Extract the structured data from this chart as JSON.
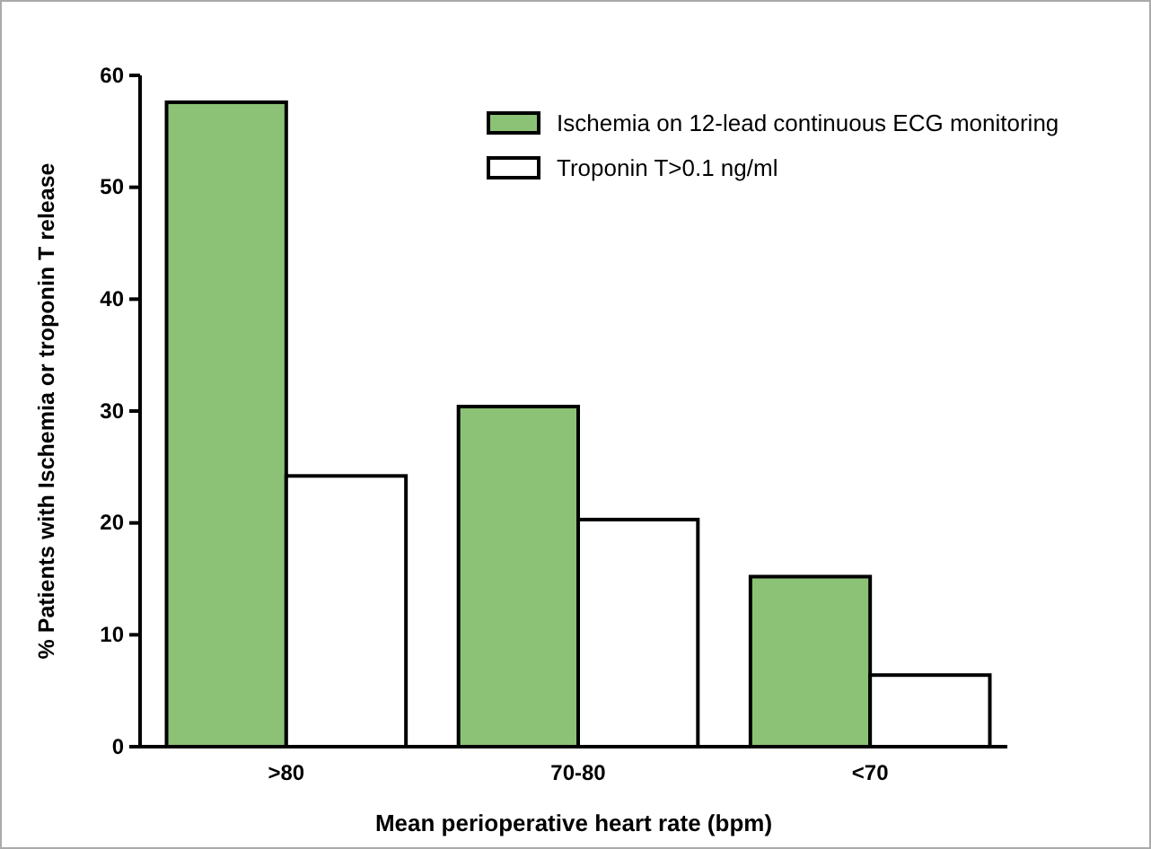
{
  "chart_data": {
    "type": "bar",
    "xlabel": "Mean perioperative heart rate (bpm)",
    "ylabel": "% Patients with Ischemia or troponin T release",
    "categories": [
      ">80",
      "70-80",
      "<70"
    ],
    "series": [
      {
        "name": "Ischemia on 12-lead continuous ECG monitoring",
        "color": "#8cc276",
        "values": [
          57.6,
          30.4,
          15.2
        ]
      },
      {
        "name": "Troponin T>0.1 ng/ml",
        "color": "#ffffff",
        "values": [
          24.2,
          20.3,
          6.4
        ]
      }
    ],
    "ylim": [
      0,
      60
    ],
    "yticks": [
      0,
      10,
      20,
      30,
      40,
      50,
      60
    ],
    "legend": "top right",
    "grid": false
  }
}
